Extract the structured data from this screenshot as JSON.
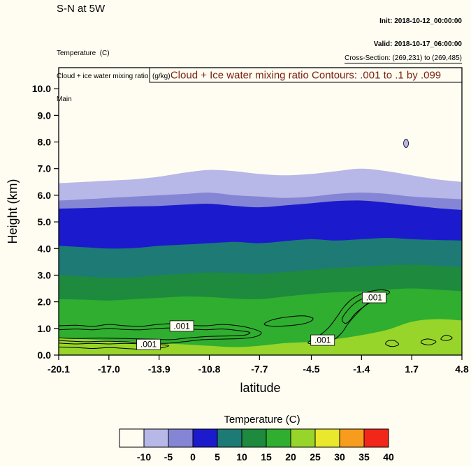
{
  "header": {
    "title": "S-N at 5W",
    "init_line": "Init: 2018-10-12_00:00:00",
    "valid_line": "Valid: 2018-10-17_06:00:00",
    "field_lines": [
      "Temperature  (C)",
      "Cloud + ice water mixing ratio  (g/kg)",
      "Main"
    ],
    "cross_section": "Cross-Section: (269,231) to (269,485)"
  },
  "plot": {
    "contour_title": "Cloud + Ice water mixing ratio Contours: .001 to .1 by .099",
    "contour_title_color": "#7c1d12",
    "xlabel": "latitude",
    "ylabel": "Height (km)"
  },
  "colorbar": {
    "title": "Temperature  (C)",
    "labels": [
      "-10",
      "-5",
      "0",
      "5",
      "10",
      "15",
      "20",
      "25",
      "30",
      "35",
      "40"
    ]
  },
  "chart_data": {
    "type": "heatmap",
    "subtype": "filled-contour-cross-section",
    "title": "Cloud + Ice water mixing ratio Contours: .001 to .1 by .099",
    "xlabel": "latitude",
    "ylabel": "Height (km)",
    "xlim": [
      -20.1,
      4.8
    ],
    "ylim": [
      0,
      10.79
    ],
    "xticks": [
      -20.1,
      -17.0,
      -13.9,
      -10.8,
      -7.7,
      -4.5,
      -1.4,
      1.7,
      4.8
    ],
    "yticks": [
      0.0,
      1.0,
      2.0,
      3.0,
      4.0,
      5.0,
      6.0,
      7.0,
      8.0,
      9.0,
      10.0
    ],
    "fill_field": "Temperature (C)",
    "fill_levels": [
      -10,
      -5,
      0,
      5,
      10,
      15,
      20,
      25,
      30,
      35,
      40
    ],
    "fill_colors": [
      "#fffdf2",
      "#b7b7e8",
      "#8585d5",
      "#1b1bcd",
      "#1e7a74",
      "#1d8a3e",
      "#2fae2f",
      "#97d52a",
      "#e9e82c",
      "#f79c1d",
      "#f3261a"
    ],
    "band_x": [
      -20.1,
      -18.5,
      -17.0,
      -15.4,
      -13.9,
      -12.3,
      -10.8,
      -9.2,
      -7.7,
      -6.1,
      -4.5,
      -3.0,
      -1.4,
      0.2,
      1.7,
      3.2,
      4.8
    ],
    "temp_bands": [
      {
        "level": -10,
        "heights": [
          6.45,
          6.5,
          6.55,
          6.6,
          6.7,
          6.85,
          6.95,
          6.9,
          6.8,
          6.75,
          6.8,
          6.9,
          7.0,
          6.9,
          6.75,
          6.6,
          6.5
        ]
      },
      {
        "level": -5,
        "heights": [
          5.8,
          5.85,
          5.9,
          5.95,
          6.0,
          6.05,
          6.1,
          6.0,
          5.95,
          5.9,
          5.95,
          6.05,
          6.1,
          6.05,
          5.95,
          5.9,
          5.85
        ]
      },
      {
        "level": 0,
        "heights": [
          5.5,
          5.52,
          5.55,
          5.58,
          5.6,
          5.65,
          5.68,
          5.6,
          5.55,
          5.62,
          5.7,
          5.78,
          5.8,
          5.72,
          5.62,
          5.52,
          5.45
        ]
      },
      {
        "level": 5,
        "heights": [
          4.1,
          4.05,
          4.0,
          4.02,
          4.1,
          4.15,
          4.2,
          4.25,
          4.2,
          4.28,
          4.35,
          4.3,
          4.35,
          4.4,
          4.35,
          4.32,
          4.3
        ]
      },
      {
        "level": 10,
        "heights": [
          3.0,
          2.95,
          2.9,
          2.92,
          3.0,
          3.05,
          3.1,
          3.08,
          3.05,
          3.12,
          3.2,
          3.27,
          3.32,
          3.37,
          3.4,
          3.36,
          3.3
        ]
      },
      {
        "level": 15,
        "heights": [
          2.1,
          2.08,
          2.05,
          2.1,
          2.15,
          2.2,
          2.18,
          2.12,
          2.1,
          2.2,
          2.3,
          2.36,
          2.4,
          2.46,
          2.5,
          2.46,
          2.4
        ]
      },
      {
        "level": 20,
        "heights": [
          0.65,
          0.6,
          0.55,
          0.5,
          0.45,
          0.4,
          0.35,
          0.3,
          0.35,
          0.45,
          0.5,
          0.6,
          0.75,
          0.95,
          1.25,
          1.35,
          1.3
        ]
      }
    ],
    "cloud_contours": {
      "field": "Cloud + Ice water mixing ratio (g/kg)",
      "levels": [
        0.001,
        0.1
      ],
      "paths": [
        {
          "level": 0.001,
          "closed": false,
          "points": [
            [
              -20.1,
              1.1
            ],
            [
              -19,
              1.12
            ],
            [
              -18,
              1.08
            ],
            [
              -17,
              1.15
            ],
            [
              -16,
              1.1
            ],
            [
              -15,
              1.08
            ],
            [
              -14,
              1.15
            ],
            [
              -13,
              1.18
            ],
            [
              -12,
              1.12
            ],
            [
              -11,
              1.1
            ],
            [
              -10,
              1.15
            ],
            [
              -9,
              1.1
            ],
            [
              -8.2,
              1.0
            ],
            [
              -7.6,
              0.85
            ],
            [
              -7.9,
              0.7
            ],
            [
              -8.8,
              0.62
            ],
            [
              -10,
              0.6
            ],
            [
              -11.2,
              0.58
            ],
            [
              -12.4,
              0.5
            ],
            [
              -13.5,
              0.44
            ],
            [
              -14.8,
              0.46
            ],
            [
              -16,
              0.5
            ],
            [
              -17.2,
              0.52
            ],
            [
              -18.4,
              0.5
            ],
            [
              -19.3,
              0.52
            ],
            [
              -20.1,
              0.55
            ]
          ]
        },
        {
          "level": 0.1,
          "closed": false,
          "points": [
            [
              -20.1,
              0.95
            ],
            [
              -19,
              0.98
            ],
            [
              -18,
              0.95
            ],
            [
              -17,
              1.0
            ],
            [
              -16,
              0.96
            ],
            [
              -15,
              0.95
            ],
            [
              -14,
              1.0
            ],
            [
              -13,
              1.02
            ],
            [
              -12,
              0.98
            ],
            [
              -11,
              0.95
            ],
            [
              -10,
              0.98
            ],
            [
              -9,
              0.92
            ],
            [
              -8.3,
              0.85
            ],
            [
              -8.6,
              0.75
            ],
            [
              -9.5,
              0.72
            ],
            [
              -10.8,
              0.7
            ],
            [
              -12,
              0.65
            ],
            [
              -13.2,
              0.58
            ],
            [
              -14.5,
              0.6
            ],
            [
              -16,
              0.62
            ],
            [
              -17.5,
              0.64
            ],
            [
              -19,
              0.62
            ],
            [
              -20.1,
              0.65
            ]
          ]
        },
        {
          "level": 0.001,
          "closed": false,
          "points": [
            [
              -20.1,
              0.3
            ],
            [
              -19,
              0.28
            ],
            [
              -18,
              0.25
            ],
            [
              -17,
              0.28
            ],
            [
              -16,
              0.25
            ],
            [
              -15,
              0.22
            ],
            [
              -14,
              0.25
            ],
            [
              -13.3,
              0.35
            ],
            [
              -14,
              0.4
            ],
            [
              -15,
              0.42
            ],
            [
              -16,
              0.44
            ],
            [
              -17,
              0.42
            ],
            [
              -18,
              0.44
            ],
            [
              -19,
              0.42
            ],
            [
              -20.1,
              0.45
            ]
          ]
        },
        {
          "level": 0.001,
          "closed": true,
          "points": [
            [
              -7.4,
              1.15
            ],
            [
              -6.8,
              1.08
            ],
            [
              -6.0,
              1.1
            ],
            [
              -5.2,
              1.15
            ],
            [
              -4.6,
              1.25
            ],
            [
              -4.4,
              1.38
            ],
            [
              -4.9,
              1.47
            ],
            [
              -5.7,
              1.45
            ],
            [
              -6.5,
              1.38
            ],
            [
              -7.1,
              1.28
            ]
          ]
        },
        {
          "level": 0.001,
          "closed": true,
          "points": [
            [
              -4.7,
              0.45
            ],
            [
              -4.0,
              0.42
            ],
            [
              -3.4,
              0.5
            ],
            [
              -3.0,
              0.62
            ],
            [
              -2.6,
              0.85
            ],
            [
              -2.2,
              1.2
            ],
            [
              -1.7,
              1.55
            ],
            [
              -1.2,
              1.85
            ],
            [
              -0.7,
              2.08
            ],
            [
              -0.2,
              2.2
            ],
            [
              0.25,
              2.3
            ],
            [
              0.3,
              2.4
            ],
            [
              -0.2,
              2.45
            ],
            [
              -0.8,
              2.4
            ],
            [
              -1.4,
              2.3
            ],
            [
              -2.0,
              2.1
            ],
            [
              -2.5,
              1.8
            ],
            [
              -2.9,
              1.45
            ],
            [
              -3.4,
              1.05
            ],
            [
              -3.9,
              0.78
            ],
            [
              -4.4,
              0.6
            ]
          ]
        },
        {
          "level": 0.1,
          "closed": true,
          "points": [
            [
              -2.2,
              1.25
            ],
            [
              -1.8,
              1.55
            ],
            [
              -1.3,
              1.8
            ],
            [
              -0.8,
              2.0
            ],
            [
              -0.4,
              2.12
            ],
            [
              -0.6,
              2.22
            ],
            [
              -1.2,
              2.15
            ],
            [
              -1.8,
              1.95
            ],
            [
              -2.3,
              1.65
            ],
            [
              -2.6,
              1.35
            ],
            [
              -2.45,
              1.2
            ]
          ]
        },
        {
          "level": 0.001,
          "closed": true,
          "points": [
            [
              0.1,
              0.4
            ],
            [
              0.5,
              0.32
            ],
            [
              0.9,
              0.4
            ],
            [
              0.6,
              0.55
            ],
            [
              0.2,
              0.52
            ]
          ]
        },
        {
          "level": 0.001,
          "closed": true,
          "points": [
            [
              2.3,
              0.45
            ],
            [
              2.8,
              0.38
            ],
            [
              3.2,
              0.5
            ],
            [
              2.8,
              0.6
            ],
            [
              2.4,
              0.57
            ]
          ]
        },
        {
          "level": 0.001,
          "closed": true,
          "points": [
            [
              3.5,
              0.6
            ],
            [
              3.9,
              0.55
            ],
            [
              4.2,
              0.65
            ],
            [
              3.8,
              0.75
            ]
          ]
        }
      ]
    },
    "contour_labels": [
      {
        "text": ".001",
        "lat": -14.55,
        "km": 0.4
      },
      {
        "text": ".001",
        "lat": -12.5,
        "km": 1.09
      },
      {
        "text": ".001",
        "lat": -3.8,
        "km": 0.56
      },
      {
        "text": ".001",
        "lat": -0.62,
        "km": 2.16
      }
    ],
    "anomaly_blob": {
      "lat": 1.35,
      "km": 7.95
    }
  }
}
